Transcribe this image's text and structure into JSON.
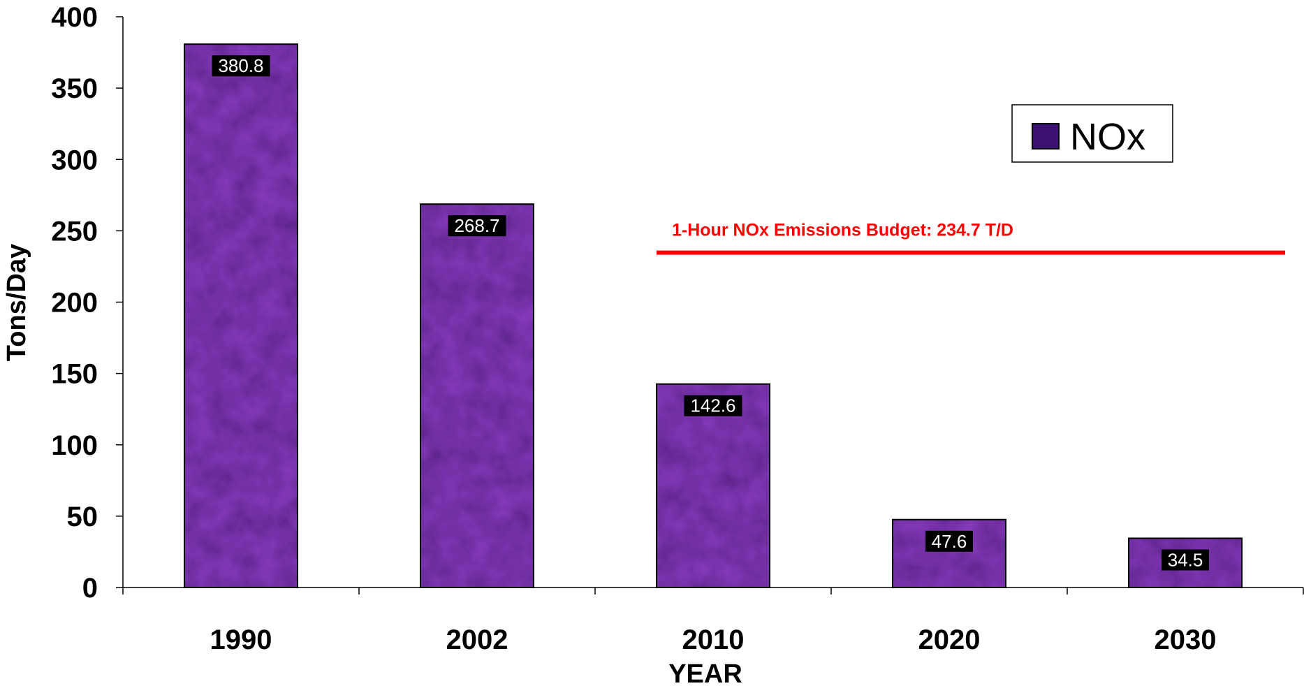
{
  "chart_data": {
    "type": "bar",
    "categories": [
      "1990",
      "2002",
      "2010",
      "2020",
      "2030"
    ],
    "series": [
      {
        "name": "NOx",
        "values": [
          380.8,
          268.7,
          142.6,
          47.6,
          34.5
        ]
      }
    ],
    "data_labels": [
      "380.8",
      "268.7",
      "142.6",
      "47.6",
      "34.5"
    ],
    "xlabel": "YEAR",
    "ylabel": "Tons/Day",
    "ylim": [
      0,
      400
    ],
    "yticks": [
      0,
      50,
      100,
      150,
      200,
      250,
      300,
      350,
      400
    ],
    "ytick_labels": [
      "0",
      "50",
      "100",
      "150",
      "200",
      "250",
      "300",
      "350",
      "400"
    ],
    "reference_line": {
      "value": 234.7,
      "label": "1-Hour NOx Emissions Budget: 234.7 T/D",
      "x_start_category": "2010",
      "color": "#ff0000"
    },
    "legend": {
      "position": "top-right",
      "label": "NOx"
    },
    "grid": false,
    "colors": {
      "bar_fill": "#3a1070",
      "bar_texture": "#6a2fb0",
      "bar_edge": "#000000",
      "data_label_bg": "#000000"
    }
  }
}
